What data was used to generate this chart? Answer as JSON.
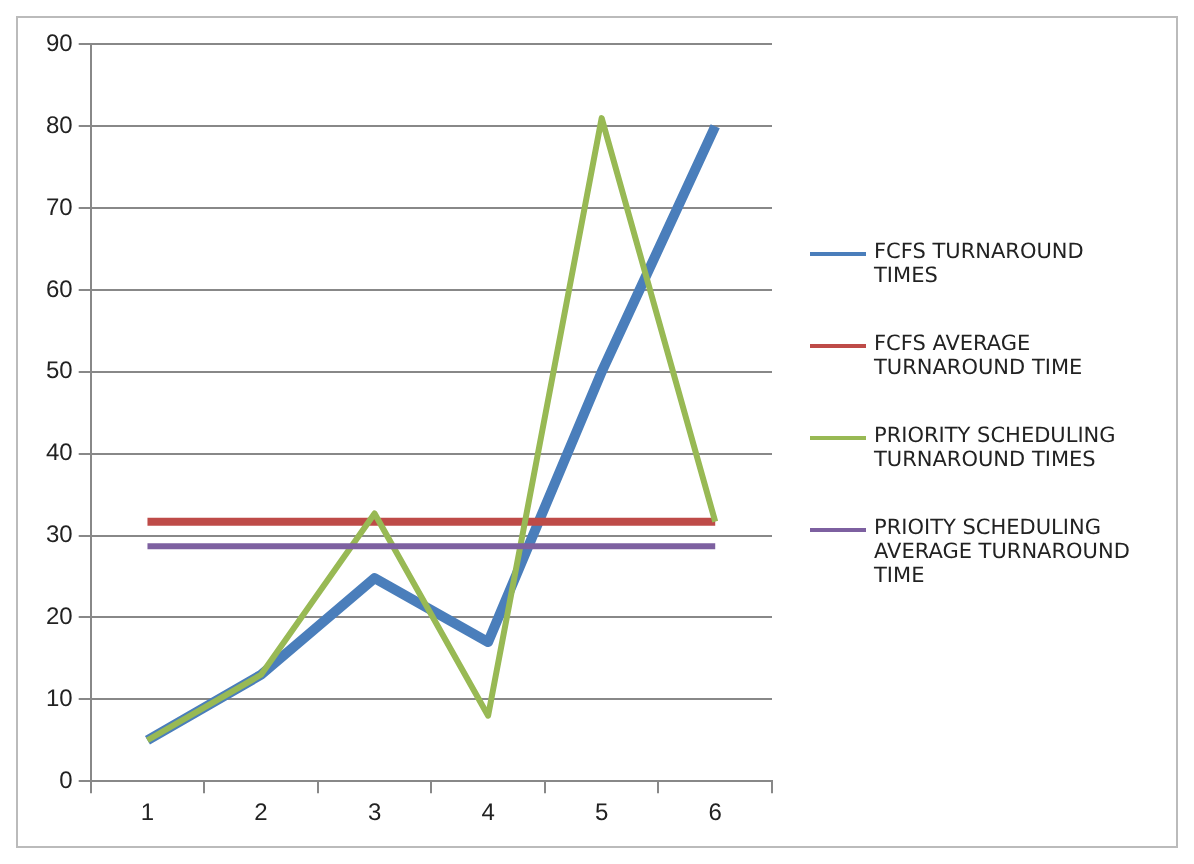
{
  "chart_data": {
    "type": "line",
    "categories": [
      "1",
      "2",
      "3",
      "4",
      "5",
      "6"
    ],
    "series": [
      {
        "name": "FCFS TURNAROUND TIMES",
        "color": "#4a7ebb",
        "values": [
          5,
          13,
          24.8,
          17,
          50,
          80
        ]
      },
      {
        "name": "FCFS AVERAGE TURNAROUND TIME",
        "color": "#be4b48",
        "values": [
          31.7,
          31.7,
          31.7,
          31.7,
          31.7,
          31.7
        ]
      },
      {
        "name": "PRIORITY SCHEDULING TURNAROUND TIMES",
        "color": "#98b954",
        "values": [
          5,
          13,
          32.7,
          8,
          81,
          31.7
        ]
      },
      {
        "name": "PRIOITY SCHEDULING AVERAGE TURNAROUND TIME",
        "color": "#7d60a0",
        "values": [
          28.7,
          28.7,
          28.7,
          28.7,
          28.7,
          28.7
        ]
      }
    ],
    "ylim": [
      0,
      90
    ],
    "yticks": [
      0,
      10,
      20,
      30,
      40,
      50,
      60,
      70,
      80,
      90
    ],
    "grid": "y",
    "legend": "right",
    "marker": "none",
    "line_style": "solid"
  }
}
